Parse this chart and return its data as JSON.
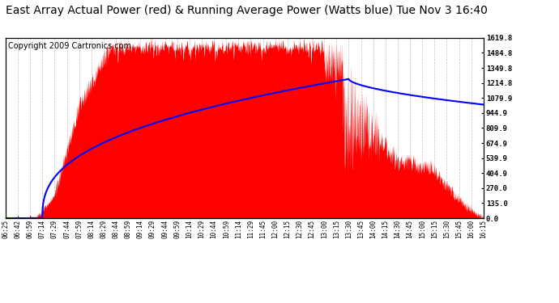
{
  "title": "East Array Actual Power (red) & Running Average Power (Watts blue) Tue Nov 3 16:40",
  "copyright": "Copyright 2009 Cartronics.com",
  "ylabel_right_ticks": [
    0.0,
    135.0,
    270.0,
    404.9,
    539.9,
    674.9,
    809.9,
    944.9,
    1079.9,
    1214.8,
    1349.8,
    1484.8,
    1619.8
  ],
  "ymax": 1619.8,
  "ymin": 0.0,
  "fill_color": "#FF0000",
  "avg_color": "#0000FF",
  "background_color": "#FFFFFF",
  "grid_color": "#BBBBBB",
  "title_fontsize": 10,
  "copyright_fontsize": 7,
  "x_tick_labels": [
    "06:25",
    "06:42",
    "06:59",
    "07:14",
    "07:29",
    "07:44",
    "07:59",
    "08:14",
    "08:29",
    "08:44",
    "08:59",
    "09:14",
    "09:29",
    "09:44",
    "09:59",
    "10:14",
    "10:29",
    "10:44",
    "10:59",
    "11:14",
    "11:29",
    "11:45",
    "12:00",
    "12:15",
    "12:30",
    "12:45",
    "13:00",
    "13:15",
    "13:30",
    "13:45",
    "14:00",
    "14:15",
    "14:30",
    "14:45",
    "15:00",
    "15:15",
    "15:30",
    "15:45",
    "16:00",
    "16:15"
  ]
}
